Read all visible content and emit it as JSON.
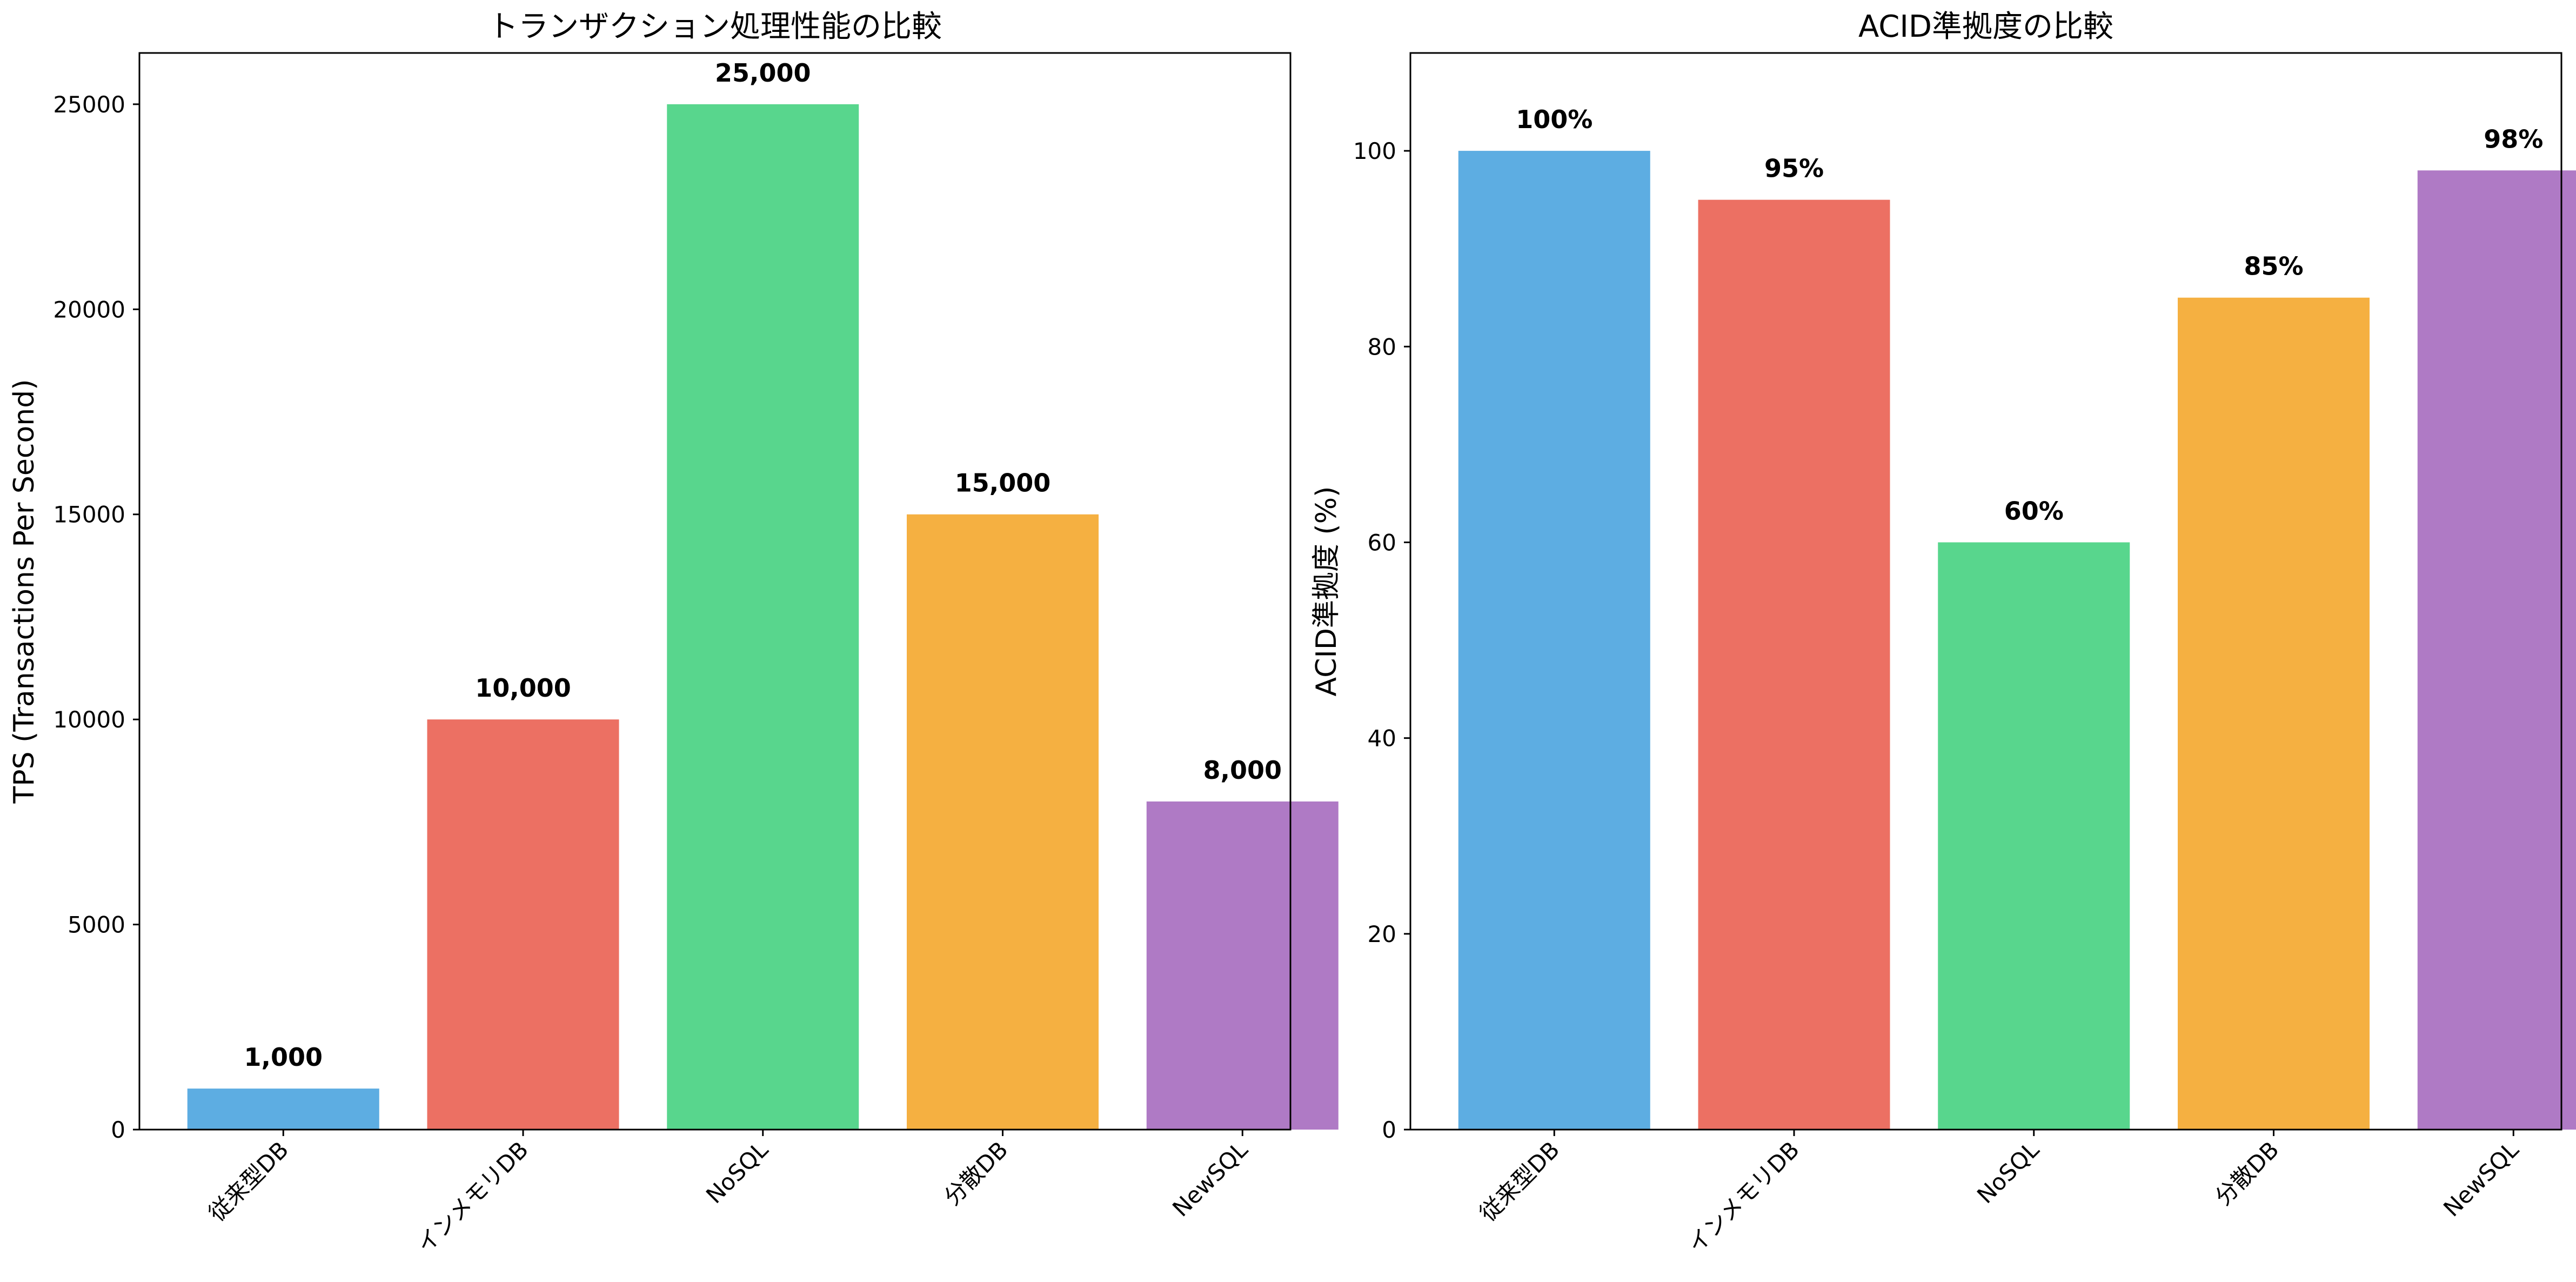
{
  "chart_data": [
    {
      "type": "bar",
      "title": "トランザクション処理性能の比較",
      "xlabel": "",
      "ylabel": "TPS (Transactions Per Second)",
      "categories": [
        "従来型DB",
        "インメモリDB",
        "NoSQL",
        "分散DB",
        "NewSQL"
      ],
      "values": [
        1000,
        10000,
        25000,
        15000,
        8000
      ],
      "value_labels": [
        "1,000",
        "10,000",
        "25,000",
        "15,000",
        "8,000"
      ],
      "ylim": [
        0,
        26250
      ],
      "yticks": [
        0,
        5000,
        10000,
        15000,
        20000,
        25000
      ],
      "ytick_labels": [
        "0",
        "5000",
        "10000",
        "15000",
        "20000",
        "25000"
      ],
      "grid": false
    },
    {
      "type": "bar",
      "title": "ACID準拠度の比較",
      "xlabel": "",
      "ylabel": "ACID準拠度 (%)",
      "categories": [
        "従来型DB",
        "インメモリDB",
        "NoSQL",
        "分散DB",
        "NewSQL"
      ],
      "values": [
        100,
        95,
        60,
        85,
        98
      ],
      "value_labels": [
        "100%",
        "95%",
        "60%",
        "85%",
        "98%"
      ],
      "ylim": [
        0,
        110
      ],
      "yticks": [
        0,
        20,
        40,
        60,
        80,
        100
      ],
      "ytick_labels": [
        "0",
        "20",
        "40",
        "60",
        "80",
        "100"
      ],
      "grid": false
    }
  ],
  "colors": [
    "#5DADE2",
    "#EC7063",
    "#58D68D",
    "#F5B041",
    "#AF7AC5"
  ]
}
